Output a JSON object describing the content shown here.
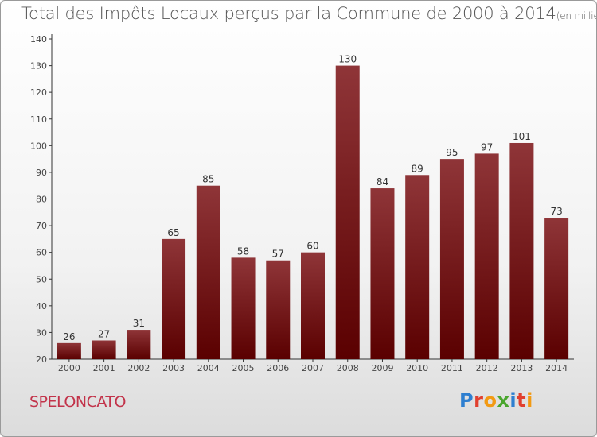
{
  "title": "Total des Impôts Locaux perçus par la Commune de 2000 à 2014",
  "unit": "(en milliers d'€)",
  "commune": "SPELONCATO",
  "logo": {
    "letters": [
      "P",
      "r",
      "o",
      "x",
      "i",
      "t",
      "i"
    ],
    "colors": [
      "#2e7fd0",
      "#e1402f",
      "#f29a13",
      "#4aa62e",
      "#2e7fd0",
      "#e1402f",
      "#f29a13"
    ]
  },
  "colors": {
    "bar_top": "#8f3538",
    "bar_bottom": "#5a0000",
    "axis": "#333333"
  },
  "chart_data": {
    "type": "bar",
    "title": "Total des Impôts Locaux perçus par la Commune de 2000 à 2014",
    "xlabel": "",
    "ylabel": "",
    "categories": [
      "2000",
      "2001",
      "2002",
      "2003",
      "2004",
      "2005",
      "2006",
      "2007",
      "2008",
      "2009",
      "2010",
      "2011",
      "2012",
      "2013",
      "2014"
    ],
    "values": [
      26,
      27,
      31,
      65,
      85,
      58,
      57,
      60,
      130,
      84,
      89,
      95,
      97,
      101,
      73
    ],
    "ylim": [
      20,
      140
    ],
    "yticks": [
      20,
      30,
      40,
      50,
      60,
      70,
      80,
      90,
      100,
      110,
      120,
      130,
      140
    ],
    "grid": false
  }
}
